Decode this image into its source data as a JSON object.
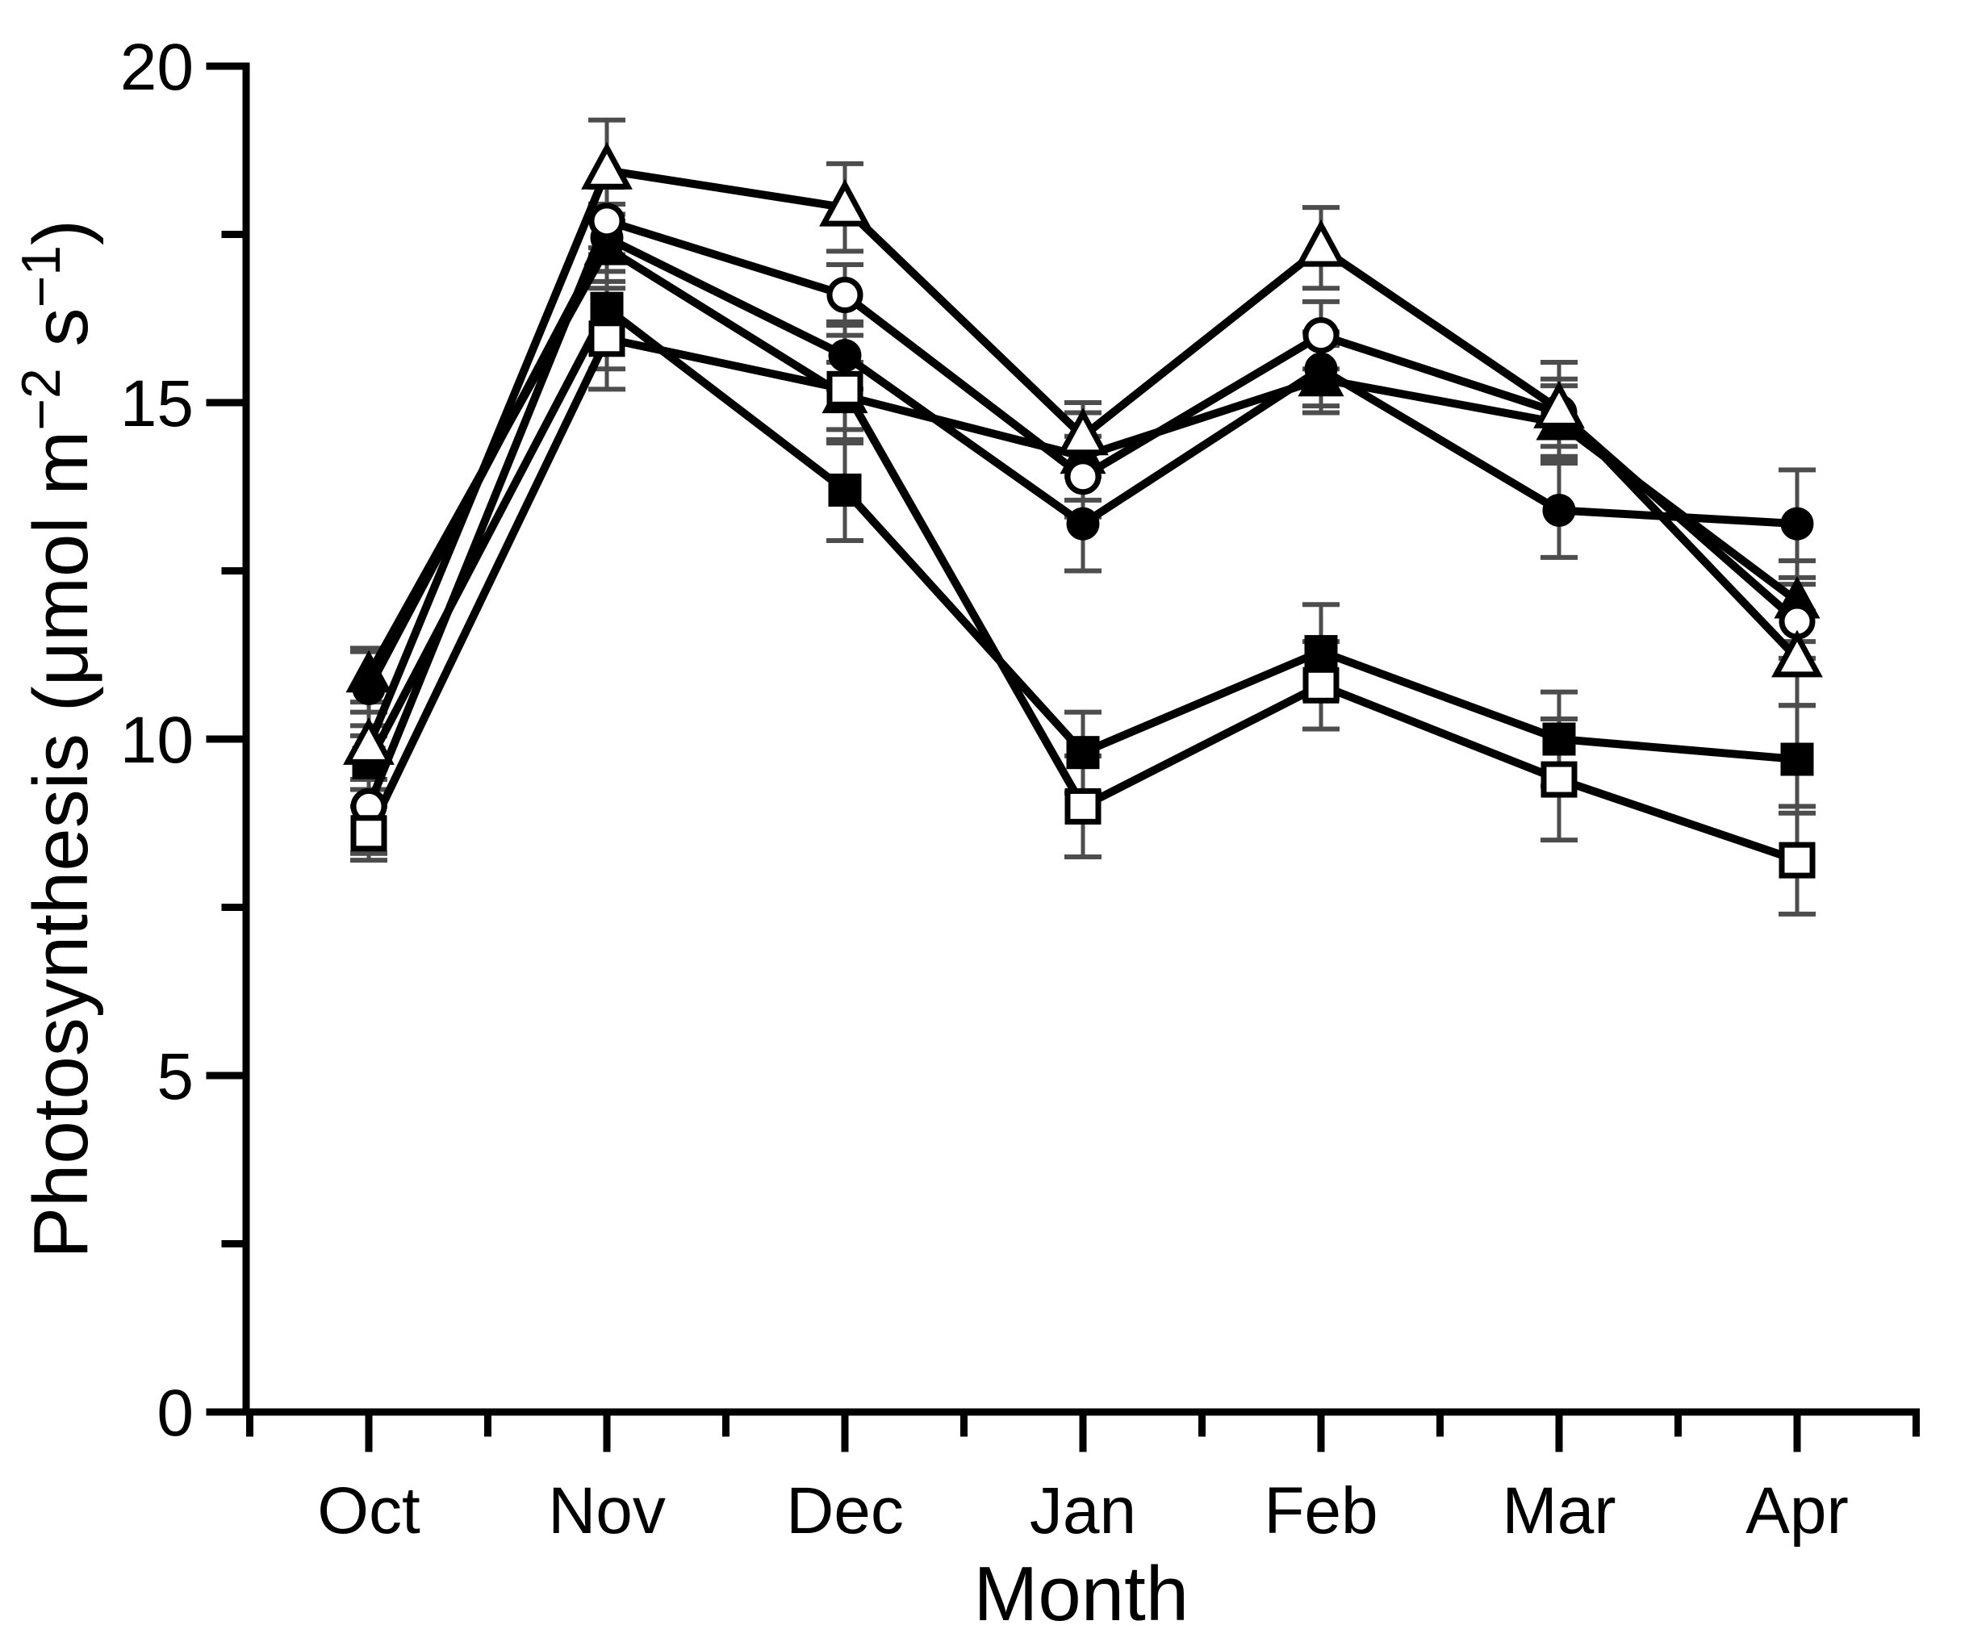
{
  "figure": {
    "background": "#ffffff",
    "text_color": "#000000",
    "line_color": "#000000",
    "error_bar_color": "#4d4d4d"
  },
  "chart_data": {
    "type": "line",
    "title": "",
    "xlabel": "Month",
    "ylabel": "Photosynthesis (μmol m−2 s−1)",
    "ylabel_segments": [
      {
        "text": "Photosynthesis (μmol m"
      },
      {
        "text": "−2",
        "superscript": true
      },
      {
        "text": " s",
        "superscript": false
      },
      {
        "text": "−1",
        "superscript": true
      },
      {
        "text": ")"
      }
    ],
    "x_categories": [
      "Oct",
      "Nov",
      "Dec",
      "Jan",
      "Feb",
      "Mar",
      "Apr"
    ],
    "ylim": [
      0,
      20
    ],
    "y_major_ticks": [
      0,
      5,
      10,
      15,
      20
    ],
    "y_minor_ticks": [
      2.5,
      7.5,
      12.5,
      17.5
    ],
    "grid": false,
    "legend_position": "none",
    "error_bars": true,
    "series": [
      {
        "name": "triangle-filled",
        "marker": "triangle",
        "fill": "filled",
        "values": [
          10.95,
          17.3,
          15.1,
          14.2,
          15.35,
          14.7,
          12.05
        ],
        "errors": [
          0.4,
          0.5,
          0.5,
          0.65,
          0.5,
          0.55,
          0.6
        ]
      },
      {
        "name": "circle-filled",
        "marker": "circle",
        "fill": "filled",
        "values": [
          10.75,
          17.45,
          15.7,
          13.2,
          15.5,
          13.4,
          13.2
        ],
        "errors": [
          0.55,
          0.5,
          0.5,
          0.7,
          0.55,
          0.7,
          0.8
        ]
      },
      {
        "name": "square-filled",
        "marker": "square",
        "fill": "filled",
        "values": [
          9.65,
          16.4,
          13.7,
          9.8,
          11.3,
          10.0,
          9.7
        ],
        "errors": [
          0.4,
          0.9,
          0.75,
          0.6,
          0.7,
          0.7,
          0.8
        ]
      },
      {
        "name": "circle-open",
        "marker": "circle",
        "fill": "open",
        "values": [
          9.0,
          17.7,
          16.6,
          13.9,
          16.0,
          14.85,
          11.75
        ],
        "errors": [
          0.7,
          0.5,
          0.45,
          0.6,
          0.5,
          0.5,
          0.55
        ]
      },
      {
        "name": "triangle-open",
        "marker": "triangle",
        "fill": "open",
        "values": [
          9.9,
          18.45,
          17.9,
          14.5,
          17.3,
          14.9,
          11.2
        ],
        "errors": [
          0.5,
          0.75,
          0.65,
          0.5,
          0.6,
          0.7,
          0.7
        ]
      },
      {
        "name": "square-open",
        "marker": "square",
        "fill": "open",
        "values": [
          8.6,
          15.95,
          15.2,
          9.0,
          10.8,
          9.4,
          8.2
        ],
        "errors": [
          0.4,
          0.75,
          0.8,
          0.75,
          0.65,
          0.9,
          0.8
        ]
      }
    ],
    "marker_draw_order": [
      "triangle-filled",
      "circle-filled",
      "square-filled",
      "circle-open",
      "triangle-open",
      "square-open"
    ]
  }
}
